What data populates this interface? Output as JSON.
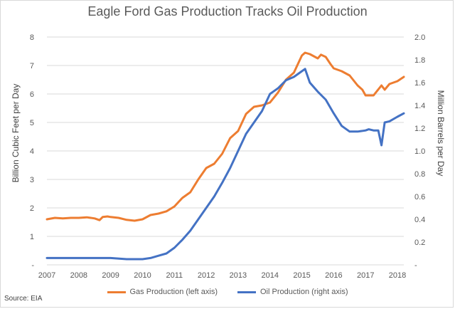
{
  "chart_data": {
    "type": "line",
    "title": "Eagle Ford Gas Production Tracks Oil Production",
    "ylabel_left": "Billion Cubic Feet per Day",
    "ylabel_right": "Million Barrels per Day",
    "x_ticks": [
      "2007",
      "2008",
      "2009",
      "2010",
      "2011",
      "2012",
      "2013",
      "2014",
      "2015",
      "2016",
      "2017",
      "2018"
    ],
    "x_range": [
      2007,
      2018.2
    ],
    "y_left_range": [
      0,
      8
    ],
    "y_left_ticks": [
      "-",
      "1",
      "2",
      "3",
      "4",
      "5",
      "6",
      "7",
      "8"
    ],
    "y_right_range": [
      0,
      2.0
    ],
    "y_right_ticks": [
      "-",
      "0.2",
      "0.4",
      "0.6",
      "0.8",
      "1.0",
      "1.2",
      "1.4",
      "1.6",
      "1.8",
      "2.0"
    ],
    "grid": "horizontal",
    "legend_position": "bottom",
    "source": "Source: EIA",
    "series": [
      {
        "name": "Gas Production (left axis)",
        "axis": "left",
        "color": "#ed7d31",
        "x": [
          2007.0,
          2007.25,
          2007.5,
          2007.75,
          2008.0,
          2008.25,
          2008.5,
          2008.65,
          2008.75,
          2008.9,
          2009.0,
          2009.25,
          2009.5,
          2009.75,
          2010.0,
          2010.25,
          2010.5,
          2010.75,
          2011.0,
          2011.25,
          2011.5,
          2011.75,
          2012.0,
          2012.25,
          2012.5,
          2012.75,
          2013.0,
          2013.25,
          2013.5,
          2013.75,
          2014.0,
          2014.25,
          2014.5,
          2014.75,
          2015.0,
          2015.1,
          2015.25,
          2015.5,
          2015.6,
          2015.75,
          2015.9,
          2016.0,
          2016.25,
          2016.5,
          2016.75,
          2016.9,
          2017.0,
          2017.25,
          2017.5,
          2017.6,
          2017.75,
          2018.0,
          2018.2
        ],
        "values": [
          1.6,
          1.65,
          1.63,
          1.65,
          1.65,
          1.67,
          1.63,
          1.57,
          1.68,
          1.7,
          1.68,
          1.65,
          1.58,
          1.55,
          1.6,
          1.75,
          1.8,
          1.88,
          2.05,
          2.35,
          2.55,
          3.0,
          3.4,
          3.55,
          3.9,
          4.45,
          4.7,
          5.3,
          5.55,
          5.6,
          5.7,
          6.05,
          6.5,
          6.75,
          7.35,
          7.45,
          7.4,
          7.25,
          7.38,
          7.3,
          7.05,
          6.9,
          6.8,
          6.65,
          6.3,
          6.15,
          5.95,
          5.95,
          6.3,
          6.15,
          6.35,
          6.45,
          6.6
        ]
      },
      {
        "name": "Oil Production (right axis)",
        "axis": "right",
        "color": "#4472c4",
        "x": [
          2007.0,
          2007.5,
          2008.0,
          2008.5,
          2009.0,
          2009.5,
          2010.0,
          2010.25,
          2010.5,
          2010.75,
          2011.0,
          2011.25,
          2011.5,
          2011.75,
          2012.0,
          2012.25,
          2012.5,
          2012.75,
          2013.0,
          2013.25,
          2013.5,
          2013.75,
          2014.0,
          2014.25,
          2014.5,
          2014.75,
          2015.0,
          2015.1,
          2015.25,
          2015.5,
          2015.75,
          2016.0,
          2016.25,
          2016.5,
          2016.75,
          2017.0,
          2017.1,
          2017.25,
          2017.4,
          2017.5,
          2017.6,
          2017.75,
          2018.0,
          2018.2
        ],
        "values": [
          0.06,
          0.06,
          0.06,
          0.06,
          0.06,
          0.05,
          0.05,
          0.06,
          0.08,
          0.1,
          0.15,
          0.22,
          0.3,
          0.4,
          0.5,
          0.6,
          0.72,
          0.85,
          1.0,
          1.15,
          1.25,
          1.35,
          1.5,
          1.55,
          1.62,
          1.65,
          1.7,
          1.72,
          1.6,
          1.52,
          1.45,
          1.33,
          1.22,
          1.17,
          1.17,
          1.18,
          1.19,
          1.18,
          1.18,
          1.05,
          1.25,
          1.26,
          1.3,
          1.33
        ]
      }
    ]
  }
}
